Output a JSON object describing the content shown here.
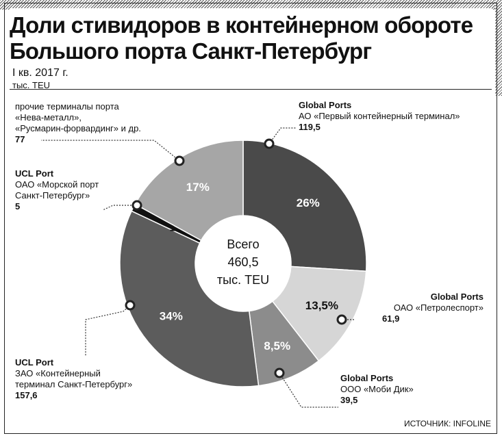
{
  "header": {
    "title_line1": "Доли стивидоров в контейнерном обороте",
    "title_line2": "Большого порта Санкт-Петербург",
    "period": "I кв. 2017 г.",
    "unit": "тыс. TEU"
  },
  "center": {
    "line1": "Всего",
    "line2": "460,5",
    "line3": "тыс. TEU"
  },
  "source": "ИСТОЧНИК: INFOLINE",
  "chart_data": {
    "type": "pie",
    "variant": "donut",
    "total": 460.5,
    "unit": "тыс. TEU",
    "slices": [
      {
        "company": "Global Ports",
        "terminal": "АО «Первый контейнерный терминал»",
        "value": "119,5",
        "pct_label": "26%",
        "pct": 26,
        "color": "#4a4a4a"
      },
      {
        "company": "Global Ports",
        "terminal": "ОАО «Петролеспорт»",
        "value": "61,9",
        "pct_label": "13,5%",
        "pct": 13.5,
        "color": "#d6d6d6"
      },
      {
        "company": "Global Ports",
        "terminal": "ООО «Моби Дик»",
        "value": "39,5",
        "pct_label": "8,5%",
        "pct": 8.5,
        "color": "#8c8c8c"
      },
      {
        "company": "UCL Port",
        "terminal": "ЗАО «Контейнерный\nтерминал Санкт-Петербург»",
        "value": "157,6",
        "pct_label": "34%",
        "pct": 34,
        "color": "#5c5c5c"
      },
      {
        "company": "UCL Port",
        "terminal": "ОАО «Морской порт\nСанкт-Петербург»",
        "value": "5",
        "pct_label": "1%",
        "pct": 1,
        "color": "#111111"
      },
      {
        "company": "",
        "terminal": "прочие терминалы порта\n«Нева-металл»,\n«Русмарин-форвардинг» и др.",
        "value": "77",
        "pct_label": "17%",
        "pct": 17,
        "color": "#a6a6a6"
      }
    ]
  }
}
